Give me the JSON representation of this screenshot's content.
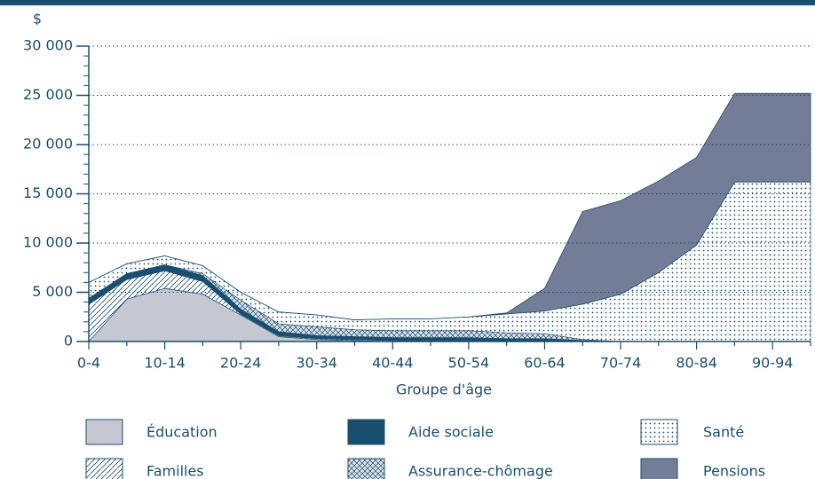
{
  "chart_data": {
    "type": "stacked_area",
    "y_label": "$",
    "x_label": "Groupe d'âge",
    "categories": [
      "0-4",
      null,
      "10-14",
      null,
      "20-24",
      null,
      "30-34",
      null,
      "40-44",
      null,
      "50-54",
      null,
      "60-64",
      null,
      "70-74",
      null,
      "80-84",
      null,
      "90-94",
      null
    ],
    "ylim": [
      0,
      30000
    ],
    "yticks": [
      0,
      {
        "value": 5000,
        "label": "5 000"
      },
      {
        "value": 10000,
        "label": "10 000"
      },
      {
        "value": 15000,
        "label": "15 000"
      },
      {
        "value": 20000,
        "label": "20 000"
      },
      {
        "value": 25000,
        "label": "25 000"
      },
      {
        "value": 30000,
        "label": "30 000"
      }
    ],
    "grid": true,
    "series": [
      {
        "name": "Éducation",
        "color": "#c5c7d3",
        "values": [
          0,
          4300,
          5400,
          4800,
          2700,
          500,
          200,
          100,
          0,
          0,
          0,
          0,
          0,
          0,
          0,
          0,
          0,
          0,
          0,
          0
        ]
      },
      {
        "name": "Familles",
        "color": "#1a4e6e",
        "pattern": "diagonal",
        "values": [
          3800,
          2000,
          1800,
          1300,
          100,
          100,
          100,
          100,
          100,
          100,
          100,
          0,
          0,
          0,
          0,
          0,
          0,
          0,
          0,
          0
        ]
      },
      {
        "name": "Aide sociale",
        "color": "#1a4e6e",
        "values": [
          600,
          600,
          600,
          600,
          500,
          400,
          300,
          300,
          300,
          300,
          300,
          300,
          300,
          100,
          0,
          0,
          0,
          0,
          0,
          0
        ]
      },
      {
        "name": "Assurance-chômage",
        "color": "#1a4e6e",
        "pattern": "crosshatch",
        "values": [
          0,
          0,
          0,
          200,
          900,
          800,
          900,
          700,
          700,
          700,
          700,
          600,
          500,
          100,
          0,
          0,
          0,
          0,
          0,
          0
        ]
      },
      {
        "name": "Santé",
        "color": "#1a4e6e",
        "pattern": "dots",
        "values": [
          1600,
          1000,
          900,
          800,
          800,
          1200,
          1200,
          1000,
          1200,
          1200,
          1400,
          1900,
          2300,
          3600,
          4800,
          7000,
          9800,
          16200,
          16200,
          16200
        ]
      },
      {
        "name": "Pensions",
        "color": "#737d98",
        "values": [
          0,
          0,
          0,
          0,
          0,
          0,
          0,
          0,
          0,
          0,
          0,
          100,
          2300,
          9400,
          9500,
          9300,
          8900,
          9000,
          9000,
          9000
        ]
      }
    ]
  }
}
